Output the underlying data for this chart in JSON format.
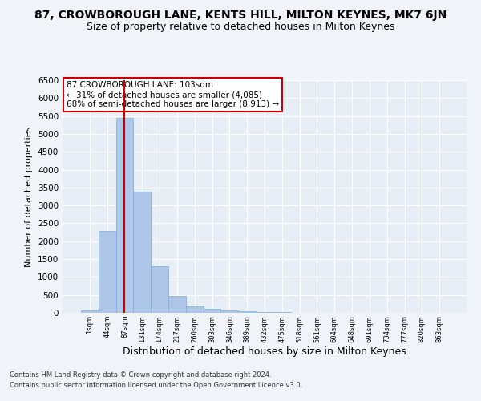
{
  "title_line1": "87, CROWBOROUGH LANE, KENTS HILL, MILTON KEYNES, MK7 6JN",
  "title_line2": "Size of property relative to detached houses in Milton Keynes",
  "xlabel": "Distribution of detached houses by size in Milton Keynes",
  "ylabel": "Number of detached properties",
  "footer_line1": "Contains HM Land Registry data © Crown copyright and database right 2024.",
  "footer_line2": "Contains public sector information licensed under the Open Government Licence v3.0.",
  "categories": [
    "1sqm",
    "44sqm",
    "87sqm",
    "131sqm",
    "174sqm",
    "217sqm",
    "260sqm",
    "303sqm",
    "346sqm",
    "389sqm",
    "432sqm",
    "475sqm",
    "518sqm",
    "561sqm",
    "604sqm",
    "648sqm",
    "691sqm",
    "734sqm",
    "777sqm",
    "820sqm",
    "863sqm"
  ],
  "values": [
    70,
    2280,
    5440,
    3380,
    1290,
    480,
    170,
    105,
    65,
    45,
    25,
    15,
    10,
    5,
    5,
    2,
    2,
    1,
    1,
    1,
    1
  ],
  "bar_color": "#aec6e8",
  "bar_edge_color": "#7aadd4",
  "highlight_index": 2,
  "highlight_color": "#cc0000",
  "annotation_text": "87 CROWBOROUGH LANE: 103sqm\n← 31% of detached houses are smaller (4,085)\n68% of semi-detached houses are larger (8,913) →",
  "annotation_box_color": "#ffffff",
  "annotation_box_edge": "#cc0000",
  "ylim": [
    0,
    6500
  ],
  "yticks": [
    0,
    500,
    1000,
    1500,
    2000,
    2500,
    3000,
    3500,
    4000,
    4500,
    5000,
    5500,
    6000,
    6500
  ],
  "ax_background_color": "#e8eef5",
  "fig_background_color": "#f0f4f8",
  "grid_color": "#ffffff",
  "title_fontsize": 10,
  "subtitle_fontsize": 9,
  "ylabel_fontsize": 8,
  "xlabel_fontsize": 9,
  "footer_fontsize": 6,
  "annot_fontsize": 7.5
}
